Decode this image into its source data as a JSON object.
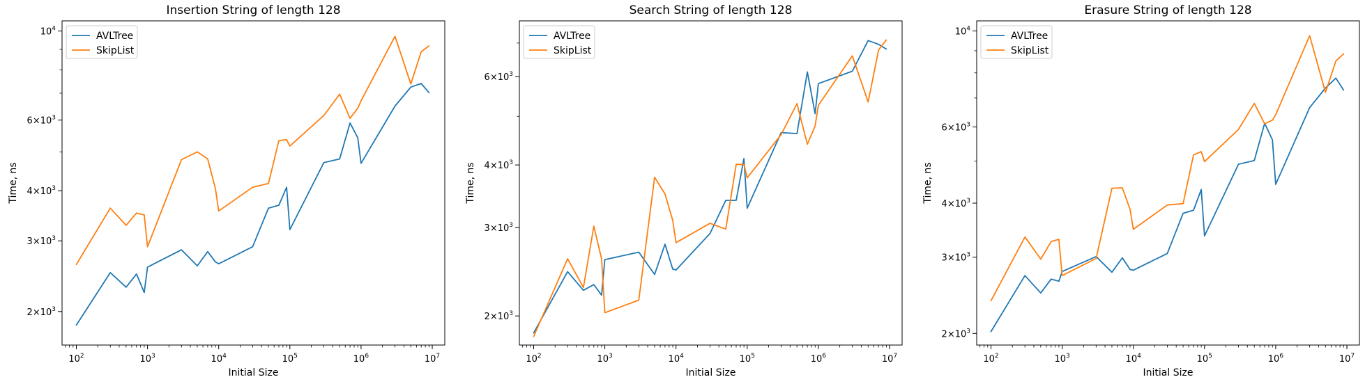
{
  "chart_data": [
    {
      "type": "line",
      "title": "Insertion String of length 128",
      "xlabel": "Initial Size",
      "ylabel": "Time, ns",
      "xscale": "log",
      "yscale": "log",
      "xlim": [
        63,
        15000000
      ],
      "ylim": [
        1650,
        10600
      ],
      "xticks": [
        {
          "v": 100,
          "exp": "2"
        },
        {
          "v": 1000,
          "exp": "3"
        },
        {
          "v": 10000,
          "exp": "4"
        },
        {
          "v": 100000,
          "exp": "5"
        },
        {
          "v": 1000000,
          "exp": "6"
        },
        {
          "v": 10000000,
          "exp": "7"
        }
      ],
      "yticks": [
        {
          "v": 2000,
          "mant": "2",
          "exp": "3"
        },
        {
          "v": 3000,
          "mant": "3",
          "exp": "3"
        },
        {
          "v": 4000,
          "mant": "4",
          "exp": "3"
        },
        {
          "v": 6000,
          "mant": "6",
          "exp": "3"
        },
        {
          "v": 10000,
          "mant": "",
          "exp": "4"
        }
      ],
      "legend": "top-left",
      "grid": false,
      "series": [
        {
          "name": "AVLTree",
          "color": "#1f77b4",
          "x": [
            100,
            300,
            500,
            700,
            900,
            1000,
            3000,
            5000,
            7000,
            9000,
            10000,
            30000,
            50000,
            70000,
            90000,
            100000,
            300000,
            500000,
            700000,
            900000,
            1000000,
            3000000,
            5000000,
            7000000,
            9000000
          ],
          "y": [
            1850,
            2500,
            2300,
            2480,
            2230,
            2580,
            2850,
            2600,
            2820,
            2660,
            2630,
            2900,
            3620,
            3680,
            4080,
            3200,
            4700,
            4800,
            5900,
            5420,
            4680,
            6500,
            7250,
            7400,
            7020
          ]
        },
        {
          "name": "SkipList",
          "color": "#ff7f0e",
          "x": [
            100,
            300,
            500,
            700,
            900,
            1000,
            3000,
            5000,
            7000,
            9000,
            10000,
            30000,
            50000,
            70000,
            90000,
            100000,
            300000,
            500000,
            700000,
            900000,
            1000000,
            3000000,
            5000000,
            7000000,
            9000000
          ],
          "y": [
            2620,
            3620,
            3280,
            3520,
            3480,
            2900,
            4780,
            5000,
            4800,
            4050,
            3560,
            4080,
            4170,
            5330,
            5360,
            5170,
            6160,
            6960,
            6060,
            6420,
            6700,
            9700,
            7380,
            8880,
            9180
          ]
        }
      ]
    },
    {
      "type": "line",
      "title": "Search String of length 128",
      "xlabel": "Initial Size",
      "ylabel": "Time, ns",
      "xscale": "log",
      "yscale": "log",
      "xlim": [
        63,
        15000000
      ],
      "ylim": [
        1750,
        7750
      ],
      "xticks": [
        {
          "v": 100,
          "exp": "2"
        },
        {
          "v": 1000,
          "exp": "3"
        },
        {
          "v": 10000,
          "exp": "4"
        },
        {
          "v": 100000,
          "exp": "5"
        },
        {
          "v": 1000000,
          "exp": "6"
        },
        {
          "v": 10000000,
          "exp": "7"
        }
      ],
      "yticks": [
        {
          "v": 2000,
          "mant": "2",
          "exp": "3"
        },
        {
          "v": 3000,
          "mant": "3",
          "exp": "3"
        },
        {
          "v": 4000,
          "mant": "4",
          "exp": "3"
        },
        {
          "v": 6000,
          "mant": "6",
          "exp": "3"
        }
      ],
      "legend": "top-left",
      "grid": false,
      "series": [
        {
          "name": "AVLTree",
          "color": "#1f77b4",
          "x": [
            100,
            300,
            500,
            700,
            900,
            1000,
            3000,
            5000,
            7000,
            9000,
            10000,
            30000,
            50000,
            70000,
            90000,
            100000,
            300000,
            500000,
            700000,
            900000,
            1000000,
            3000000,
            5000000,
            7000000,
            9000000
          ],
          "y": [
            1850,
            2450,
            2250,
            2310,
            2200,
            2590,
            2680,
            2420,
            2780,
            2480,
            2470,
            2920,
            3400,
            3400,
            4120,
            3280,
            4640,
            4620,
            6130,
            5060,
            5810,
            6150,
            7080,
            6960,
            6810
          ]
        },
        {
          "name": "SkipList",
          "color": "#ff7f0e",
          "x": [
            100,
            300,
            500,
            700,
            900,
            1000,
            3000,
            5000,
            7000,
            9000,
            10000,
            30000,
            50000,
            70000,
            90000,
            100000,
            300000,
            500000,
            700000,
            900000,
            1000000,
            3000000,
            5000000,
            7000000,
            9000000
          ],
          "y": [
            1820,
            2600,
            2280,
            3020,
            2600,
            2030,
            2150,
            3780,
            3500,
            3100,
            2800,
            3060,
            2980,
            4010,
            4010,
            3770,
            4600,
            5300,
            4400,
            4780,
            5260,
            6600,
            5340,
            6780,
            7100
          ]
        }
      ]
    },
    {
      "type": "line",
      "title": "Erasure String of length 128",
      "xlabel": "Initial Size",
      "ylabel": "Time, ns",
      "xscale": "log",
      "yscale": "log",
      "xlim": [
        63,
        15000000
      ],
      "ylim": [
        1880,
        10550
      ],
      "xticks": [
        {
          "v": 100,
          "exp": "2"
        },
        {
          "v": 1000,
          "exp": "3"
        },
        {
          "v": 10000,
          "exp": "4"
        },
        {
          "v": 100000,
          "exp": "5"
        },
        {
          "v": 1000000,
          "exp": "6"
        },
        {
          "v": 10000000,
          "exp": "7"
        }
      ],
      "yticks": [
        {
          "v": 2000,
          "mant": "2",
          "exp": "3"
        },
        {
          "v": 3000,
          "mant": "3",
          "exp": "3"
        },
        {
          "v": 4000,
          "mant": "4",
          "exp": "3"
        },
        {
          "v": 6000,
          "mant": "6",
          "exp": "3"
        },
        {
          "v": 10000,
          "mant": "",
          "exp": "4"
        }
      ],
      "legend": "top-left",
      "grid": false,
      "series": [
        {
          "name": "AVLTree",
          "color": "#1f77b4",
          "x": [
            100,
            300,
            500,
            700,
            900,
            1000,
            3000,
            5000,
            7000,
            9000,
            10000,
            30000,
            50000,
            70000,
            90000,
            100000,
            300000,
            500000,
            700000,
            900000,
            1000000,
            3000000,
            5000000,
            7000000,
            9000000
          ],
          "y": [
            2020,
            2720,
            2480,
            2670,
            2640,
            2780,
            3010,
            2770,
            2990,
            2810,
            2800,
            3060,
            3790,
            3850,
            4300,
            3360,
            4920,
            5020,
            6120,
            5600,
            4420,
            6650,
            7380,
            7780,
            7300
          ]
        },
        {
          "name": "SkipList",
          "color": "#ff7f0e",
          "x": [
            100,
            300,
            500,
            700,
            900,
            1000,
            3000,
            5000,
            7000,
            9000,
            10000,
            30000,
            50000,
            70000,
            90000,
            100000,
            300000,
            500000,
            700000,
            900000,
            1000000,
            3000000,
            5000000,
            7000000,
            9000000
          ],
          "y": [
            2380,
            3340,
            2970,
            3260,
            3300,
            2720,
            2980,
            4330,
            4340,
            3870,
            3480,
            3960,
            3990,
            5170,
            5260,
            4990,
            5920,
            6800,
            6100,
            6220,
            6400,
            9750,
            7210,
            8520,
            8850
          ]
        }
      ]
    }
  ]
}
